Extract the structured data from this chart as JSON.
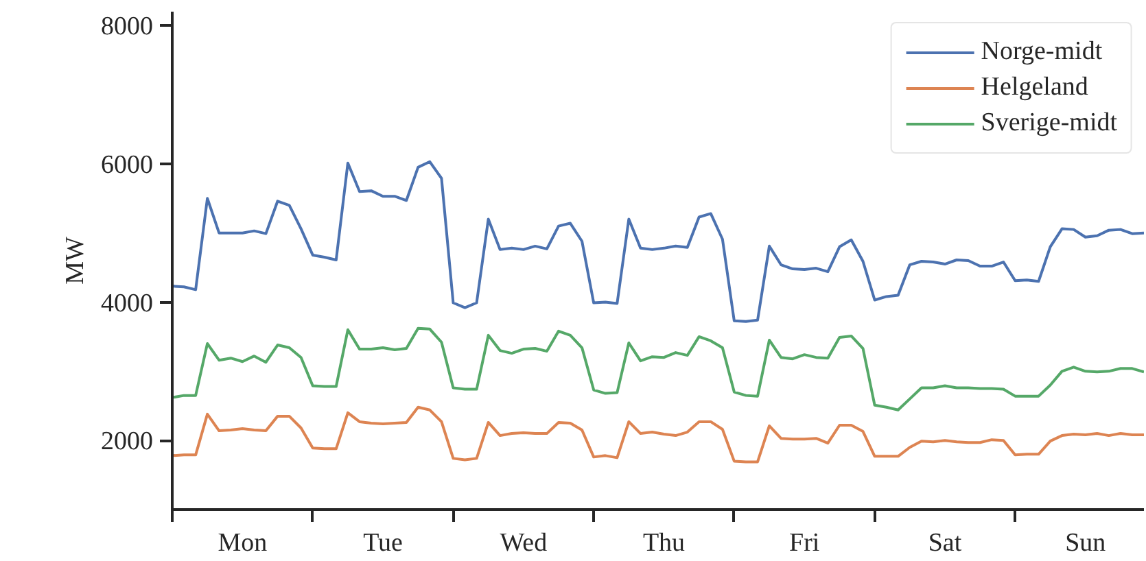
{
  "chart_data": {
    "type": "line",
    "ylabel": "MW",
    "categories": [
      null,
      null,
      null,
      null,
      null,
      null,
      "Mon",
      null,
      null,
      null,
      null,
      null,
      null,
      null,
      null,
      null,
      null,
      null,
      "Tue",
      null,
      null,
      null,
      null,
      null,
      null,
      null,
      null,
      null,
      null,
      null,
      "Wed",
      null,
      null,
      null,
      null,
      null,
      null,
      null,
      null,
      null,
      null,
      null,
      "Thu",
      null,
      null,
      null,
      null,
      null,
      null,
      null,
      null,
      null,
      null,
      null,
      "Fri",
      null,
      null,
      null,
      null,
      null,
      null,
      null,
      null,
      null,
      null,
      null,
      "Sat",
      null,
      null,
      null,
      null,
      null,
      null,
      null,
      null,
      null,
      null,
      null,
      "Sun",
      null,
      null,
      null,
      null,
      null
    ],
    "ylim": [
      1000,
      8200
    ],
    "yticks": [
      2000,
      4000,
      6000,
      8000
    ],
    "grid": false,
    "legend": "top right",
    "marker": "none",
    "line_style": "solid",
    "series": [
      {
        "name": "Norge-midt",
        "color": "#4c72b0",
        "values": [
          4230,
          4220,
          4180,
          5500,
          5000,
          5000,
          5000,
          5030,
          4990,
          5460,
          5400,
          5060,
          4680,
          4650,
          4610,
          6010,
          5600,
          5610,
          5530,
          5530,
          5470,
          5950,
          6030,
          5790,
          3990,
          3920,
          3990,
          5200,
          4760,
          4780,
          4760,
          4810,
          4770,
          5100,
          5140,
          4880,
          3990,
          4000,
          3980,
          5200,
          4780,
          4760,
          4780,
          4810,
          4790,
          5230,
          5280,
          4910,
          3730,
          3720,
          3740,
          4810,
          4540,
          4480,
          4470,
          4490,
          4440,
          4800,
          4900,
          4590,
          4030,
          4080,
          4100,
          4540,
          4590,
          4580,
          4550,
          4610,
          4600,
          4520,
          4520,
          4580,
          4310,
          4320,
          4300,
          4800,
          5060,
          5050,
          4940,
          4960,
          5040,
          5050,
          4990,
          5000
        ]
      },
      {
        "name": "Helgeland",
        "color": "#dd8452",
        "values": [
          1780,
          1790,
          1790,
          2380,
          2140,
          2150,
          2170,
          2150,
          2140,
          2350,
          2350,
          2180,
          1890,
          1880,
          1880,
          2400,
          2270,
          2250,
          2240,
          2250,
          2260,
          2480,
          2440,
          2270,
          1740,
          1720,
          1740,
          2260,
          2070,
          2100,
          2110,
          2100,
          2100,
          2260,
          2250,
          2150,
          1760,
          1780,
          1750,
          2270,
          2100,
          2120,
          2090,
          2070,
          2120,
          2270,
          2270,
          2160,
          1700,
          1690,
          1690,
          2210,
          2030,
          2020,
          2020,
          2030,
          1960,
          2220,
          2220,
          2130,
          1770,
          1770,
          1770,
          1900,
          1990,
          1980,
          2000,
          1980,
          1970,
          1970,
          2010,
          2000,
          1790,
          1800,
          1800,
          1990,
          2070,
          2090,
          2080,
          2100,
          2070,
          2100,
          2080,
          2080
        ]
      },
      {
        "name": "Sverige-midt",
        "color": "#55a868",
        "values": [
          2620,
          2650,
          2650,
          3400,
          3160,
          3190,
          3140,
          3220,
          3130,
          3380,
          3340,
          3200,
          2790,
          2780,
          2780,
          3600,
          3320,
          3320,
          3340,
          3310,
          3330,
          3620,
          3610,
          3420,
          2760,
          2740,
          2740,
          3520,
          3300,
          3260,
          3320,
          3330,
          3290,
          3580,
          3520,
          3340,
          2730,
          2680,
          2690,
          3410,
          3150,
          3210,
          3200,
          3270,
          3230,
          3500,
          3440,
          3340,
          2700,
          2650,
          2640,
          3450,
          3200,
          3180,
          3240,
          3200,
          3190,
          3490,
          3510,
          3330,
          2510,
          2480,
          2440,
          2600,
          2760,
          2760,
          2790,
          2760,
          2760,
          2750,
          2750,
          2740,
          2640,
          2640,
          2640,
          2800,
          3000,
          3060,
          3000,
          2990,
          3000,
          3040,
          3040,
          2990
        ]
      }
    ]
  }
}
